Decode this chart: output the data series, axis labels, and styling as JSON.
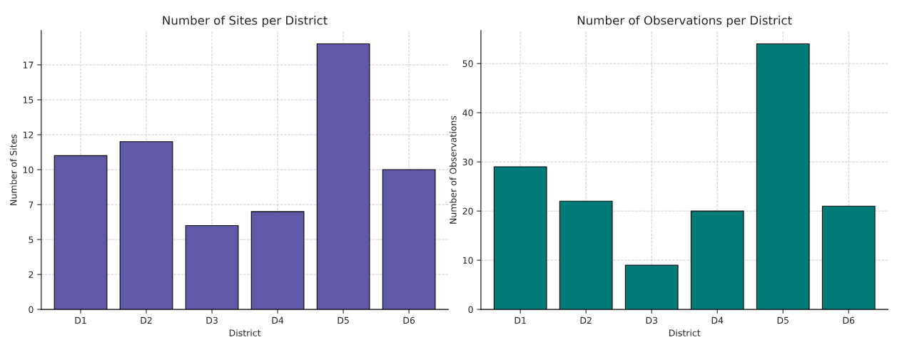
{
  "chart_data": [
    {
      "type": "bar",
      "title": "Number of Sites per District",
      "xlabel": "District",
      "ylabel": "Number of Sites",
      "categories": [
        "D1",
        "D2",
        "D3",
        "D4",
        "D5",
        "D6"
      ],
      "values": [
        11,
        12,
        6,
        7,
        19,
        10
      ],
      "color": "#6059a8",
      "ylim": [
        0,
        19.95
      ],
      "yticks": [
        0,
        {
          "value": 2.5,
          "label": "2"
        },
        5,
        {
          "value": 7.5,
          "label": "7"
        },
        10,
        {
          "value": 12.5,
          "label": "12"
        },
        15,
        {
          "value": 17.5,
          "label": "17"
        }
      ],
      "grid": true
    },
    {
      "type": "bar",
      "title": "Number of Observations per District",
      "xlabel": "District",
      "ylabel": "Number of Observations",
      "categories": [
        "D1",
        "D2",
        "D3",
        "D4",
        "D5",
        "D6"
      ],
      "values": [
        29,
        22,
        9,
        20,
        54,
        21
      ],
      "color": "#007b78",
      "ylim": [
        0,
        56.7
      ],
      "yticks": [
        0,
        10,
        20,
        30,
        40,
        50
      ],
      "grid": true
    }
  ]
}
